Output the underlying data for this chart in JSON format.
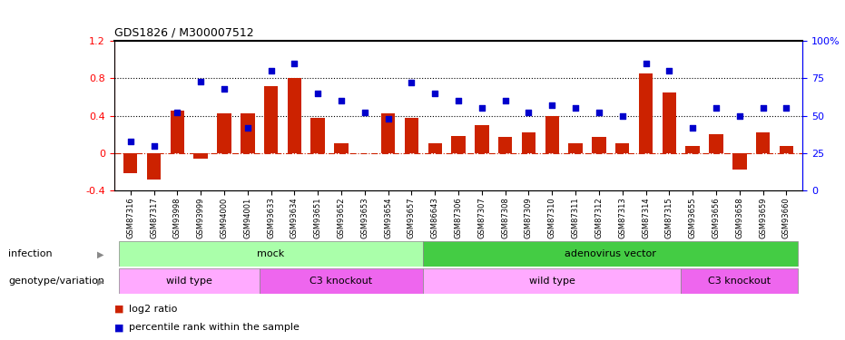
{
  "title": "GDS1826 / M300007512",
  "samples": [
    "GSM87316",
    "GSM87317",
    "GSM93998",
    "GSM93999",
    "GSM94000",
    "GSM94001",
    "GSM93633",
    "GSM93634",
    "GSM93651",
    "GSM93652",
    "GSM93653",
    "GSM93654",
    "GSM93657",
    "GSM86643",
    "GSM87306",
    "GSM87307",
    "GSM87308",
    "GSM87309",
    "GSM87310",
    "GSM87311",
    "GSM87312",
    "GSM87313",
    "GSM87314",
    "GSM87315",
    "GSM93655",
    "GSM93656",
    "GSM93658",
    "GSM93659",
    "GSM93660"
  ],
  "log2_ratio": [
    -0.22,
    -0.28,
    0.45,
    -0.06,
    0.42,
    0.42,
    0.72,
    0.8,
    0.38,
    0.1,
    0.0,
    0.42,
    0.38,
    0.1,
    0.18,
    0.3,
    0.17,
    0.22,
    0.4,
    0.1,
    0.17,
    0.1,
    0.85,
    0.65,
    0.08,
    0.2,
    -0.18,
    0.22,
    0.08
  ],
  "percentile": [
    33,
    30,
    52,
    73,
    68,
    42,
    80,
    85,
    65,
    60,
    52,
    48,
    72,
    65,
    60,
    55,
    60,
    52,
    57,
    55,
    52,
    50,
    85,
    80,
    42,
    55,
    50,
    55,
    55
  ],
  "infection_groups": [
    {
      "label": "mock",
      "start": 0,
      "end": 13,
      "color": "#aaffaa"
    },
    {
      "label": "adenovirus vector",
      "start": 13,
      "end": 29,
      "color": "#44cc44"
    }
  ],
  "genotype_groups": [
    {
      "label": "wild type",
      "start": 0,
      "end": 6,
      "color": "#ffaaff"
    },
    {
      "label": "C3 knockout",
      "start": 6,
      "end": 13,
      "color": "#ee66ee"
    },
    {
      "label": "wild type",
      "start": 13,
      "end": 24,
      "color": "#ffaaff"
    },
    {
      "label": "C3 knockout",
      "start": 24,
      "end": 29,
      "color": "#ee66ee"
    }
  ],
  "bar_color": "#cc2200",
  "dot_color": "#0000cc",
  "ylim_left": [
    -0.4,
    1.2
  ],
  "ylim_right": [
    0,
    100
  ],
  "hlines": [
    0.4,
    0.8
  ],
  "right_ticks": [
    0,
    25,
    50,
    75,
    100
  ],
  "right_tick_labels": [
    "0",
    "25",
    "50",
    "75",
    "100%"
  ],
  "left_ticks": [
    -0.4,
    0.0,
    0.4,
    0.8,
    1.2
  ],
  "left_tick_labels": [
    "-0.4",
    "0",
    "0.4",
    "0.8",
    "1.2"
  ]
}
